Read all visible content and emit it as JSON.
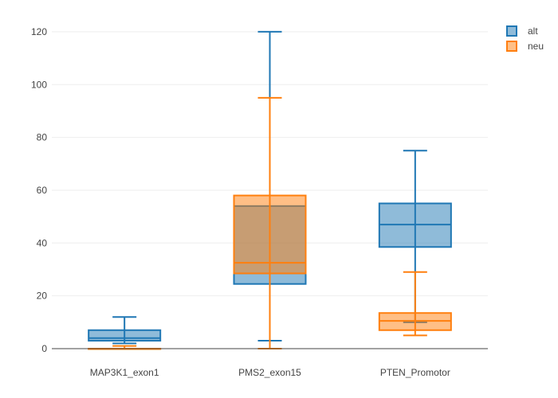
{
  "chart_data": {
    "type": "box",
    "categories": [
      "MAP3K1_exon1",
      "PMS2_exon15",
      "PTEN_Promotor"
    ],
    "ylim": [
      0,
      126
    ],
    "yticks": [
      0,
      20,
      40,
      60,
      80,
      100,
      120
    ],
    "grid": true,
    "legend_position": "top-right",
    "series": [
      {
        "name": "alt",
        "color": "#1f77b4",
        "fill": "rgba(31,119,180,0.5)",
        "boxes": [
          {
            "min": 2,
            "q1": 3,
            "median": 4,
            "q3": 7,
            "max": 12
          },
          {
            "min": 3,
            "q1": 24.5,
            "median": 28.5,
            "q3": 54,
            "max": 120
          },
          {
            "min": 10,
            "q1": 38.5,
            "median": 47,
            "q3": 55,
            "max": 75
          }
        ]
      },
      {
        "name": "neu",
        "color": "#ff7f0e",
        "fill": "rgba(255,127,14,0.5)",
        "boxes": [
          {
            "min": 0,
            "q1": 0,
            "median": 0,
            "q3": 0,
            "max": 1
          },
          {
            "min": 0,
            "q1": 28.5,
            "median": 32.5,
            "q3": 58,
            "max": 95
          },
          {
            "min": 5,
            "q1": 7,
            "median": 10.5,
            "q3": 13.5,
            "max": 29
          }
        ]
      }
    ]
  }
}
